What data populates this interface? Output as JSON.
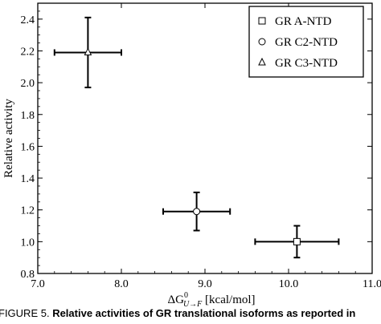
{
  "chart_data": {
    "type": "scatter",
    "xlabel_main": "ΔG",
    "xlabel_sup": "0",
    "xlabel_sub": "U→F",
    "xlabel_unit": " [kcal/mol]",
    "ylabel": "Relative activity",
    "xlim": [
      7.0,
      11.0
    ],
    "ylim": [
      0.8,
      2.5
    ],
    "x_ticks": [
      "7.0",
      "8.0",
      "9.0",
      "10.0",
      "11.0"
    ],
    "y_ticks": [
      "0.8",
      "1.0",
      "1.2",
      "1.4",
      "1.6",
      "1.8",
      "2.0",
      "2.2",
      "2.4"
    ],
    "legend_position": "top-right",
    "series": [
      {
        "name": "GR A-NTD",
        "marker": "square",
        "x": 10.1,
        "y": 1.0,
        "xerr": 0.5,
        "yerr": 0.1
      },
      {
        "name": "GR C2-NTD",
        "marker": "circle",
        "x": 8.9,
        "y": 1.19,
        "xerr": 0.4,
        "yerr": 0.12
      },
      {
        "name": "GR C3-NTD",
        "marker": "triangle",
        "x": 7.6,
        "y": 2.19,
        "xerr": 0.4,
        "yerr": 0.22
      }
    ]
  },
  "caption": {
    "prefix": "FIGURE 5. ",
    "bold": "Relative activities of GR translational isoforms as reported in"
  }
}
